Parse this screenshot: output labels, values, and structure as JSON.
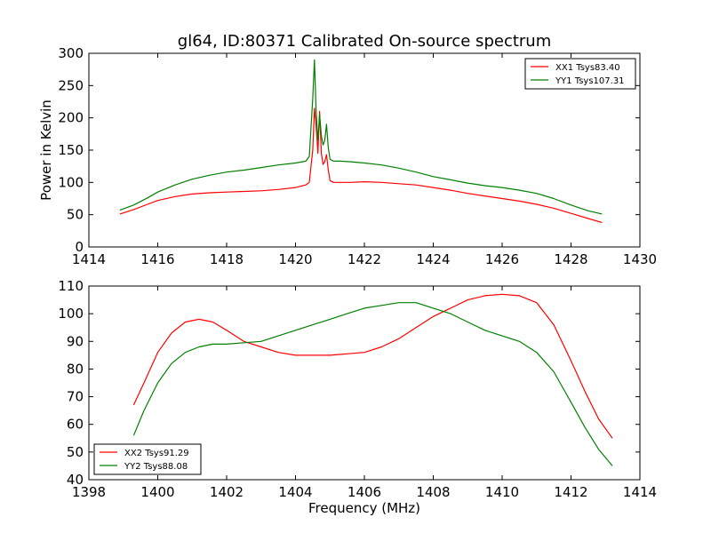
{
  "title": "gl64, ID:80371 Calibrated On-source spectrum",
  "chart_data": [
    {
      "type": "line",
      "ylabel": "Power in Kelvin",
      "xlabel": "",
      "xlim": [
        1414,
        1430
      ],
      "ylim": [
        0,
        300
      ],
      "xticks": [
        1414,
        1416,
        1418,
        1420,
        1422,
        1424,
        1426,
        1428,
        1430
      ],
      "yticks": [
        0,
        50,
        100,
        150,
        200,
        250,
        300
      ],
      "grid": false,
      "legend_position": "top-right",
      "series": [
        {
          "name": "XX1 Tsys83.40",
          "color": "#ff0000",
          "x": [
            1414.9,
            1415.3,
            1415.7,
            1416.0,
            1416.5,
            1417.0,
            1417.5,
            1418.0,
            1418.5,
            1419.0,
            1419.5,
            1420.0,
            1420.3,
            1420.4,
            1420.5,
            1420.55,
            1420.6,
            1420.65,
            1420.7,
            1420.75,
            1420.8,
            1420.85,
            1420.9,
            1420.95,
            1421.0,
            1421.1,
            1421.3,
            1421.6,
            1422.0,
            1422.5,
            1423.0,
            1423.5,
            1424.0,
            1424.5,
            1425.0,
            1425.5,
            1426.0,
            1426.5,
            1427.0,
            1427.5,
            1428.0,
            1428.5,
            1428.9
          ],
          "y": [
            51,
            58,
            66,
            72,
            78,
            82,
            84,
            85,
            86,
            87,
            89,
            92,
            96,
            100,
            150,
            215,
            188,
            145,
            210,
            145,
            128,
            132,
            143,
            120,
            103,
            100,
            100,
            100,
            101,
            100,
            98,
            96,
            92,
            88,
            83,
            79,
            75,
            71,
            66,
            60,
            52,
            44,
            38
          ]
        },
        {
          "name": "YY1 Tsys107.31",
          "color": "#008000",
          "x": [
            1414.9,
            1415.3,
            1415.7,
            1416.0,
            1416.5,
            1417.0,
            1417.5,
            1418.0,
            1418.5,
            1419.0,
            1419.5,
            1420.0,
            1420.3,
            1420.4,
            1420.5,
            1420.55,
            1420.6,
            1420.65,
            1420.7,
            1420.75,
            1420.8,
            1420.85,
            1420.9,
            1420.95,
            1421.0,
            1421.1,
            1421.3,
            1421.6,
            1422.0,
            1422.5,
            1423.0,
            1423.5,
            1424.0,
            1424.5,
            1425.0,
            1425.5,
            1426.0,
            1426.5,
            1427.0,
            1427.5,
            1428.0,
            1428.5,
            1428.9
          ],
          "y": [
            57,
            65,
            76,
            85,
            96,
            105,
            111,
            116,
            119,
            123,
            127,
            130,
            133,
            140,
            230,
            290,
            210,
            165,
            205,
            172,
            158,
            165,
            190,
            155,
            136,
            133,
            133,
            132,
            130,
            127,
            122,
            116,
            109,
            104,
            99,
            95,
            92,
            88,
            83,
            75,
            65,
            56,
            51
          ]
        }
      ]
    },
    {
      "type": "line",
      "xlabel": "Frequency (MHz)",
      "ylabel": "",
      "xlim": [
        1398,
        1414
      ],
      "ylim": [
        40,
        110
      ],
      "xticks": [
        1398,
        1400,
        1402,
        1404,
        1406,
        1408,
        1410,
        1412,
        1414
      ],
      "yticks": [
        40,
        50,
        60,
        70,
        80,
        90,
        100,
        110
      ],
      "grid": false,
      "legend_position": "bottom-left",
      "series": [
        {
          "name": "XX2 Tsys91.29",
          "color": "#ff0000",
          "x": [
            1399.3,
            1399.6,
            1400.0,
            1400.4,
            1400.8,
            1401.2,
            1401.6,
            1402.0,
            1402.5,
            1403.0,
            1403.5,
            1404.0,
            1404.5,
            1405.0,
            1405.5,
            1406.0,
            1406.5,
            1407.0,
            1407.5,
            1408.0,
            1408.5,
            1409.0,
            1409.5,
            1410.0,
            1410.5,
            1411.0,
            1411.5,
            1412.0,
            1412.4,
            1412.8,
            1413.2
          ],
          "y": [
            67,
            75,
            86,
            93,
            97,
            98,
            97,
            94,
            90,
            88,
            86,
            85,
            85,
            85,
            85.5,
            86,
            88,
            91,
            95,
            99,
            102,
            105,
            106.5,
            107,
            106.5,
            104,
            96,
            83,
            72,
            62,
            55
          ]
        },
        {
          "name": "YY2 Tsys88.08",
          "color": "#008000",
          "x": [
            1399.3,
            1399.6,
            1400.0,
            1400.4,
            1400.8,
            1401.2,
            1401.6,
            1402.0,
            1402.5,
            1403.0,
            1403.5,
            1404.0,
            1404.5,
            1405.0,
            1405.5,
            1406.0,
            1406.5,
            1407.0,
            1407.5,
            1408.0,
            1408.5,
            1409.0,
            1409.5,
            1410.0,
            1410.5,
            1411.0,
            1411.5,
            1412.0,
            1412.4,
            1412.8,
            1413.2
          ],
          "y": [
            56,
            65,
            75,
            82,
            86,
            88,
            89,
            89,
            89.5,
            90,
            92,
            94,
            96,
            98,
            100,
            102,
            103,
            104,
            104,
            102,
            100,
            97,
            94,
            92,
            90,
            86,
            79,
            68,
            59,
            51,
            45
          ]
        }
      ]
    }
  ]
}
